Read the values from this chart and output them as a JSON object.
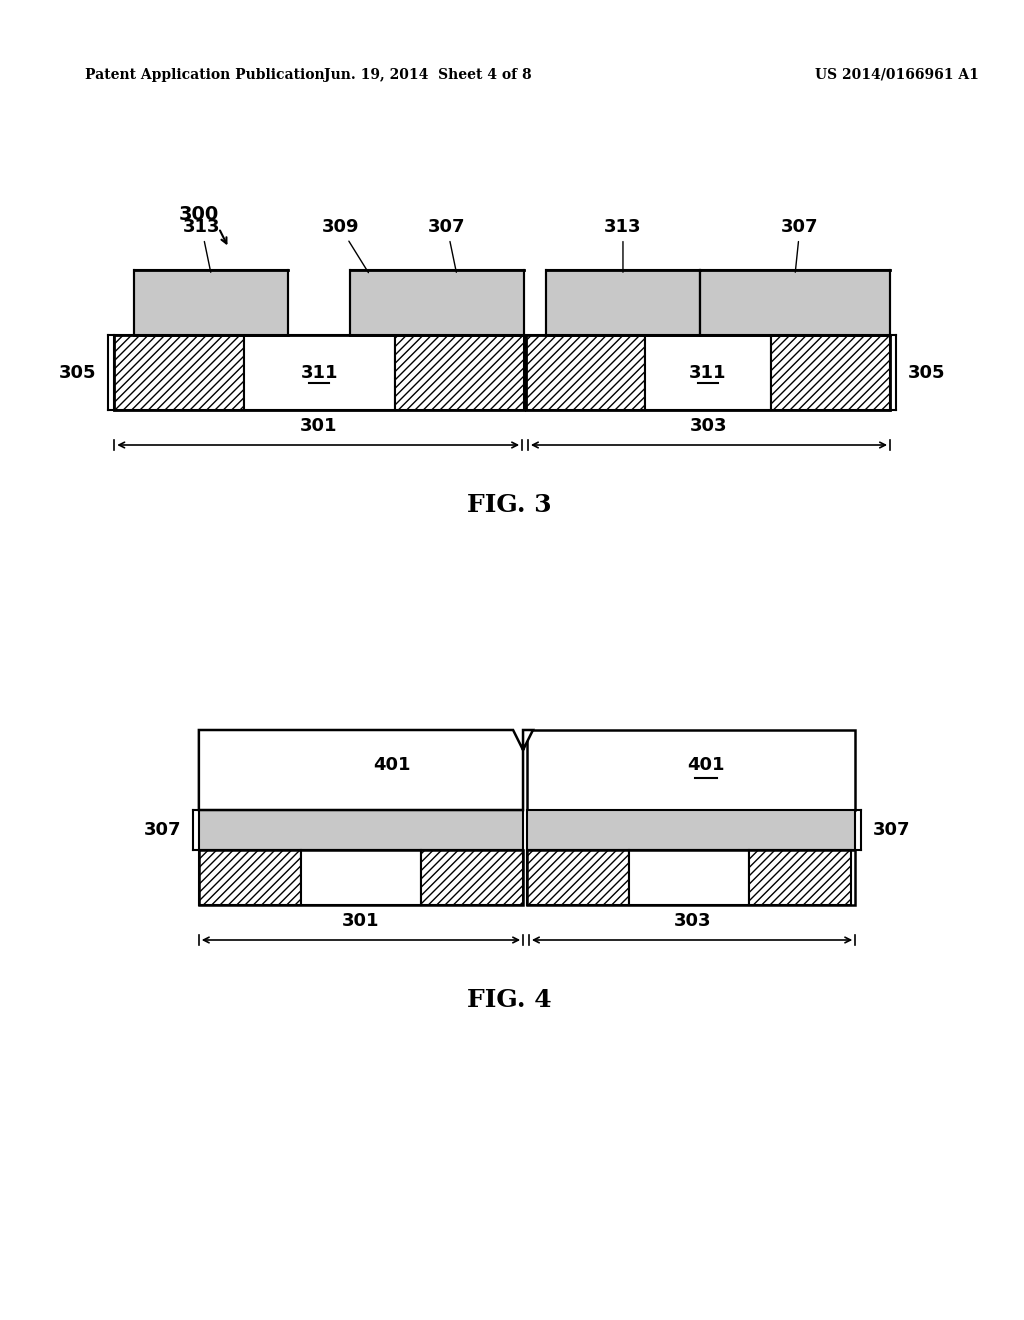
{
  "bg_color": "#ffffff",
  "header_left": "Patent Application Publication",
  "header_mid": "Jun. 19, 2014  Sheet 4 of 8",
  "header_right": "US 2014/0166961 A1",
  "fig3_label": "FIG. 3",
  "fig4_label": "FIG. 4",
  "label_300": "300",
  "label_305_left": "305",
  "label_305_right": "305",
  "label_301": "301",
  "label_303": "303",
  "label_307_fig3_left": "307",
  "label_307_fig3_right": "307",
  "label_309": "309",
  "label_311_left": "311",
  "label_311_right": "311",
  "label_313_left": "313",
  "label_313_right": "313",
  "label_307_fig4_left": "307",
  "label_307_fig4_right": "307",
  "label_401_left": "401",
  "label_401_right": "401",
  "label_301_fig4": "301",
  "label_303_fig4": "303"
}
